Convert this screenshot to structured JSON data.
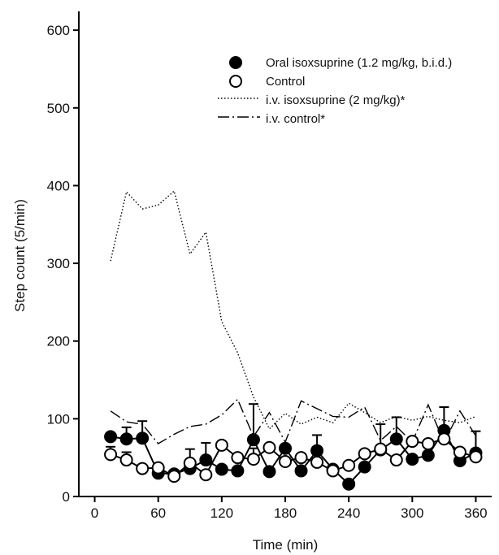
{
  "chart_data": {
    "type": "line",
    "title": "",
    "xlabel": "Time (min)",
    "ylabel": "Step count (5/min)",
    "xlim": [
      -15,
      375
    ],
    "ylim": [
      0,
      620
    ],
    "xticks": [
      0,
      60,
      120,
      180,
      240,
      300,
      360
    ],
    "yticks": [
      0,
      100,
      200,
      300,
      400,
      500,
      600
    ],
    "grid": false,
    "legend_position": "top-right",
    "series": [
      {
        "name": "Oral isoxsuprine (1.2 mg/kg, b.i.d.)",
        "style": "filled-circle",
        "color": "#000000",
        "x": [
          15,
          30,
          45,
          60,
          75,
          90,
          105,
          120,
          135,
          150,
          165,
          180,
          195,
          210,
          225,
          240,
          255,
          270,
          285,
          300,
          315,
          330,
          345,
          360
        ],
        "y": [
          77,
          74,
          75,
          30,
          29,
          36,
          47,
          35,
          33,
          73,
          32,
          62,
          33,
          59,
          35,
          16,
          38,
          60,
          74,
          48,
          53,
          85,
          46,
          56
        ],
        "err": [
          0,
          15,
          22,
          0,
          0,
          0,
          22,
          0,
          0,
          46,
          0,
          0,
          0,
          20,
          0,
          0,
          0,
          0,
          28,
          0,
          0,
          30,
          0,
          28
        ]
      },
      {
        "name": "Control",
        "style": "open-circle",
        "color": "#000000",
        "x": [
          15,
          30,
          45,
          60,
          75,
          90,
          105,
          120,
          135,
          150,
          165,
          180,
          195,
          210,
          225,
          240,
          255,
          270,
          285,
          300,
          315,
          330,
          345,
          360
        ],
        "y": [
          54,
          47,
          36,
          37,
          26,
          43,
          28,
          66,
          50,
          48,
          63,
          45,
          50,
          44,
          33,
          40,
          55,
          61,
          47,
          71,
          68,
          74,
          57,
          51
        ],
        "err": [
          10,
          10,
          0,
          0,
          0,
          18,
          0,
          0,
          0,
          14,
          0,
          0,
          0,
          0,
          0,
          0,
          0,
          32,
          0,
          0,
          0,
          0,
          0,
          0
        ]
      },
      {
        "name": "i.v. isoxsuprine (2 mg/kg)*",
        "style": "dotted",
        "color": "#000000",
        "x": [
          15,
          30,
          45,
          60,
          75,
          90,
          105,
          120,
          135,
          150,
          165,
          180,
          195,
          210,
          225,
          240,
          255,
          270,
          285,
          300,
          315,
          330,
          345,
          360
        ],
        "y": [
          303,
          392,
          370,
          375,
          393,
          312,
          340,
          225,
          185,
          128,
          87,
          107,
          93,
          102,
          95,
          120,
          108,
          95,
          103,
          98,
          103,
          98,
          95,
          103
        ]
      },
      {
        "name": "i.v. control*",
        "style": "dash-dot",
        "color": "#000000",
        "x": [
          15,
          30,
          45,
          60,
          75,
          90,
          105,
          120,
          135,
          150,
          165,
          180,
          195,
          210,
          225,
          240,
          255,
          270,
          285,
          300,
          315,
          330,
          345,
          360
        ],
        "y": [
          110,
          96,
          93,
          68,
          80,
          90,
          93,
          105,
          125,
          77,
          108,
          70,
          123,
          113,
          103,
          102,
          115,
          72,
          90,
          70,
          118,
          70,
          110,
          78
        ]
      }
    ]
  }
}
